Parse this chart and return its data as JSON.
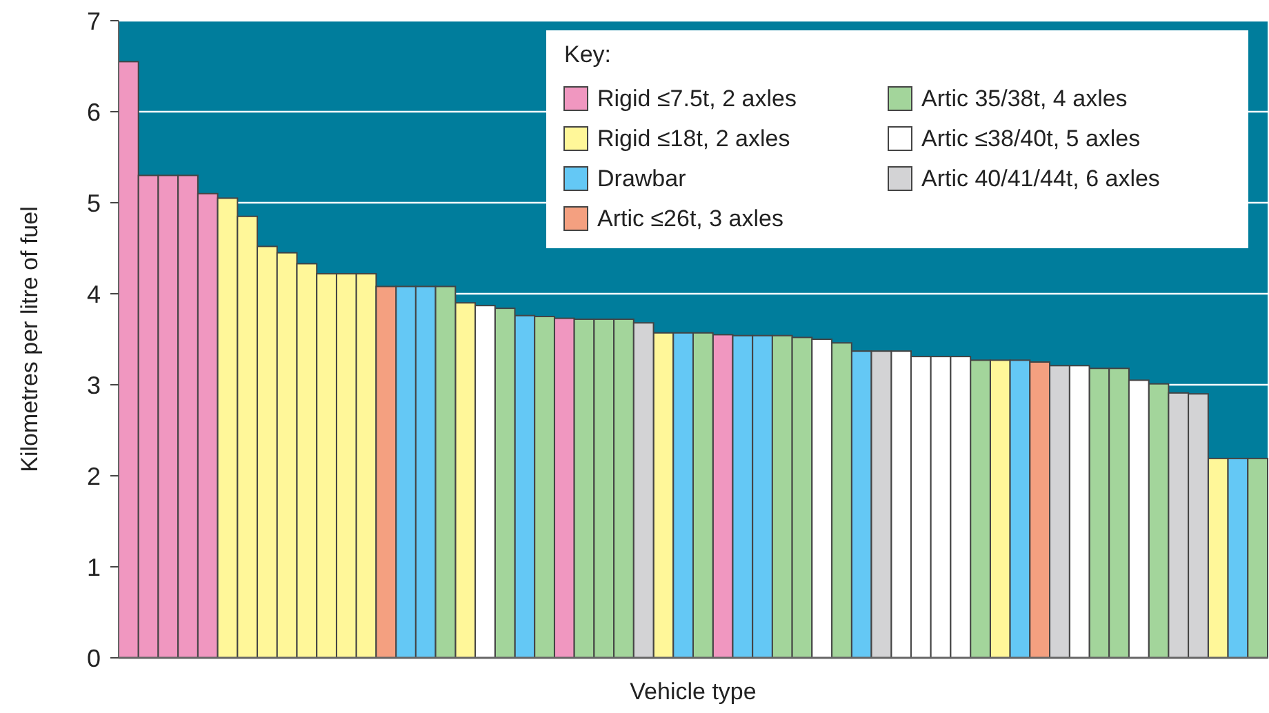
{
  "chart_data": {
    "type": "bar",
    "stacked": true,
    "xlabel": "Vehicle type",
    "ylabel": "Kilometres per litre of fuel",
    "legend_title": "Key:",
    "legend": "top right",
    "grid": "y",
    "ylim": [
      0,
      7
    ],
    "yticks": [
      0,
      1,
      2,
      3,
      4,
      5,
      6,
      7
    ],
    "categories": [
      null,
      null,
      null,
      null,
      null,
      null,
      null,
      null,
      null,
      null,
      null,
      null,
      null,
      null,
      null,
      null,
      null,
      null,
      null,
      null,
      null,
      null,
      null,
      null,
      null,
      null,
      null,
      null,
      null,
      null,
      null,
      null,
      null,
      null,
      null,
      null,
      null,
      null,
      null,
      null,
      null,
      null,
      null,
      null,
      null,
      null,
      null,
      null,
      null,
      null,
      null,
      null,
      null,
      null,
      null,
      null,
      null,
      null
    ],
    "series": [
      {
        "name": "Rigid ≤7.5t, 2 axles",
        "color": "#f097c0",
        "values": [
          6.55,
          5.3,
          5.3,
          5.3,
          5.1,
          null,
          null,
          null,
          null,
          null,
          null,
          null,
          null,
          null,
          null,
          null,
          null,
          null,
          null,
          null,
          null,
          null,
          3.73,
          null,
          null,
          null,
          null,
          null,
          null,
          null,
          3.55,
          null,
          null,
          null,
          null,
          null,
          null,
          null,
          null,
          null,
          null,
          null,
          null,
          null,
          null,
          null,
          null,
          null,
          null,
          null,
          null,
          null,
          null,
          null,
          null,
          null,
          null,
          null
        ]
      },
      {
        "name": "Rigid ≤18t, 2 axles",
        "color": "#fff799",
        "values": [
          null,
          null,
          null,
          null,
          null,
          5.05,
          4.85,
          4.52,
          4.45,
          4.33,
          4.22,
          4.22,
          4.22,
          null,
          null,
          null,
          null,
          3.9,
          null,
          null,
          null,
          null,
          null,
          null,
          null,
          null,
          null,
          3.57,
          null,
          null,
          null,
          null,
          null,
          null,
          null,
          null,
          null,
          null,
          null,
          null,
          null,
          null,
          null,
          null,
          3.27,
          null,
          null,
          null,
          null,
          null,
          null,
          null,
          null,
          null,
          null,
          2.19,
          null,
          null
        ]
      },
      {
        "name": "Drawbar",
        "color": "#64c8f5",
        "values": [
          null,
          null,
          null,
          null,
          null,
          null,
          null,
          null,
          null,
          null,
          null,
          null,
          null,
          null,
          4.08,
          4.08,
          null,
          null,
          null,
          null,
          3.76,
          null,
          null,
          null,
          null,
          null,
          null,
          null,
          3.57,
          null,
          null,
          3.54,
          3.54,
          null,
          null,
          null,
          null,
          3.37,
          null,
          null,
          null,
          null,
          null,
          null,
          null,
          3.27,
          null,
          null,
          null,
          null,
          null,
          null,
          null,
          null,
          null,
          null,
          2.19,
          null
        ]
      },
      {
        "name": "Artic ≤26t, 3 axles",
        "color": "#f4a080",
        "values": [
          null,
          null,
          null,
          null,
          null,
          null,
          null,
          null,
          null,
          null,
          null,
          null,
          null,
          4.08,
          null,
          null,
          null,
          null,
          null,
          null,
          null,
          null,
          null,
          null,
          null,
          null,
          null,
          null,
          null,
          null,
          null,
          null,
          null,
          null,
          null,
          null,
          null,
          null,
          null,
          null,
          null,
          null,
          null,
          null,
          null,
          null,
          3.25,
          null,
          null,
          null,
          null,
          null,
          null,
          null,
          null,
          null,
          null,
          null
        ]
      },
      {
        "name": "Artic 35/38t, 4 axles",
        "color": "#a3d59b",
        "values": [
          null,
          null,
          null,
          null,
          null,
          null,
          null,
          null,
          null,
          null,
          null,
          null,
          null,
          null,
          null,
          null,
          4.08,
          null,
          null,
          3.84,
          null,
          3.75,
          null,
          3.72,
          3.72,
          3.72,
          null,
          null,
          null,
          3.57,
          null,
          null,
          null,
          3.54,
          3.52,
          null,
          3.46,
          null,
          null,
          null,
          null,
          null,
          null,
          3.27,
          null,
          null,
          null,
          null,
          null,
          3.18,
          3.18,
          null,
          3.01,
          null,
          null,
          null,
          null,
          2.19
        ]
      },
      {
        "name": "Artic ≤38/40t, 5 axles",
        "color": "#ffffff",
        "values": [
          null,
          null,
          null,
          null,
          null,
          null,
          null,
          null,
          null,
          null,
          null,
          null,
          null,
          null,
          null,
          null,
          null,
          null,
          3.87,
          null,
          null,
          null,
          null,
          null,
          null,
          null,
          null,
          null,
          null,
          null,
          null,
          null,
          null,
          null,
          null,
          3.5,
          null,
          null,
          null,
          3.37,
          3.31,
          3.31,
          3.31,
          null,
          null,
          null,
          null,
          null,
          3.21,
          null,
          null,
          3.05,
          null,
          null,
          null,
          null,
          null,
          null
        ]
      },
      {
        "name": "Artic 40/41/44t, 6 axles",
        "color": "#d3d3d5",
        "values": [
          null,
          null,
          null,
          null,
          null,
          null,
          null,
          null,
          null,
          null,
          null,
          null,
          null,
          null,
          null,
          null,
          null,
          null,
          null,
          null,
          null,
          null,
          null,
          null,
          null,
          null,
          3.68,
          null,
          null,
          null,
          null,
          null,
          null,
          null,
          null,
          null,
          null,
          null,
          3.37,
          null,
          null,
          null,
          null,
          null,
          null,
          null,
          null,
          3.21,
          null,
          null,
          null,
          null,
          null,
          2.91,
          2.9,
          null,
          null,
          null
        ]
      }
    ]
  }
}
